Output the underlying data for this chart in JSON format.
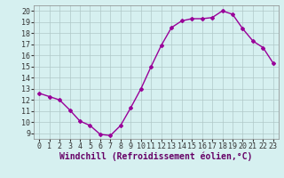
{
  "x": [
    0,
    1,
    2,
    3,
    4,
    5,
    6,
    7,
    8,
    9,
    10,
    11,
    12,
    13,
    14,
    15,
    16,
    17,
    18,
    19,
    20,
    21,
    22,
    23
  ],
  "y": [
    12.6,
    12.3,
    12.0,
    11.1,
    10.1,
    9.7,
    8.9,
    8.8,
    9.7,
    11.3,
    13.0,
    15.0,
    16.9,
    18.5,
    19.1,
    19.3,
    19.3,
    19.4,
    20.0,
    19.7,
    18.4,
    17.3,
    16.7,
    15.3
  ],
  "line_color": "#990099",
  "marker": "D",
  "marker_size": 2,
  "line_width": 1.0,
  "bg_color": "#d6f0f0",
  "grid_color": "#b0c8c8",
  "xlabel": "Windchill (Refroidissement éolien,°C)",
  "xlabel_fontsize": 7,
  "tick_fontsize": 6,
  "ylim": [
    8.5,
    20.5
  ],
  "xlim": [
    -0.5,
    23.5
  ],
  "yticks": [
    9,
    10,
    11,
    12,
    13,
    14,
    15,
    16,
    17,
    18,
    19,
    20
  ],
  "xticks": [
    0,
    1,
    2,
    3,
    4,
    5,
    6,
    7,
    8,
    9,
    10,
    11,
    12,
    13,
    14,
    15,
    16,
    17,
    18,
    19,
    20,
    21,
    22,
    23
  ],
  "label_color": "#660066"
}
